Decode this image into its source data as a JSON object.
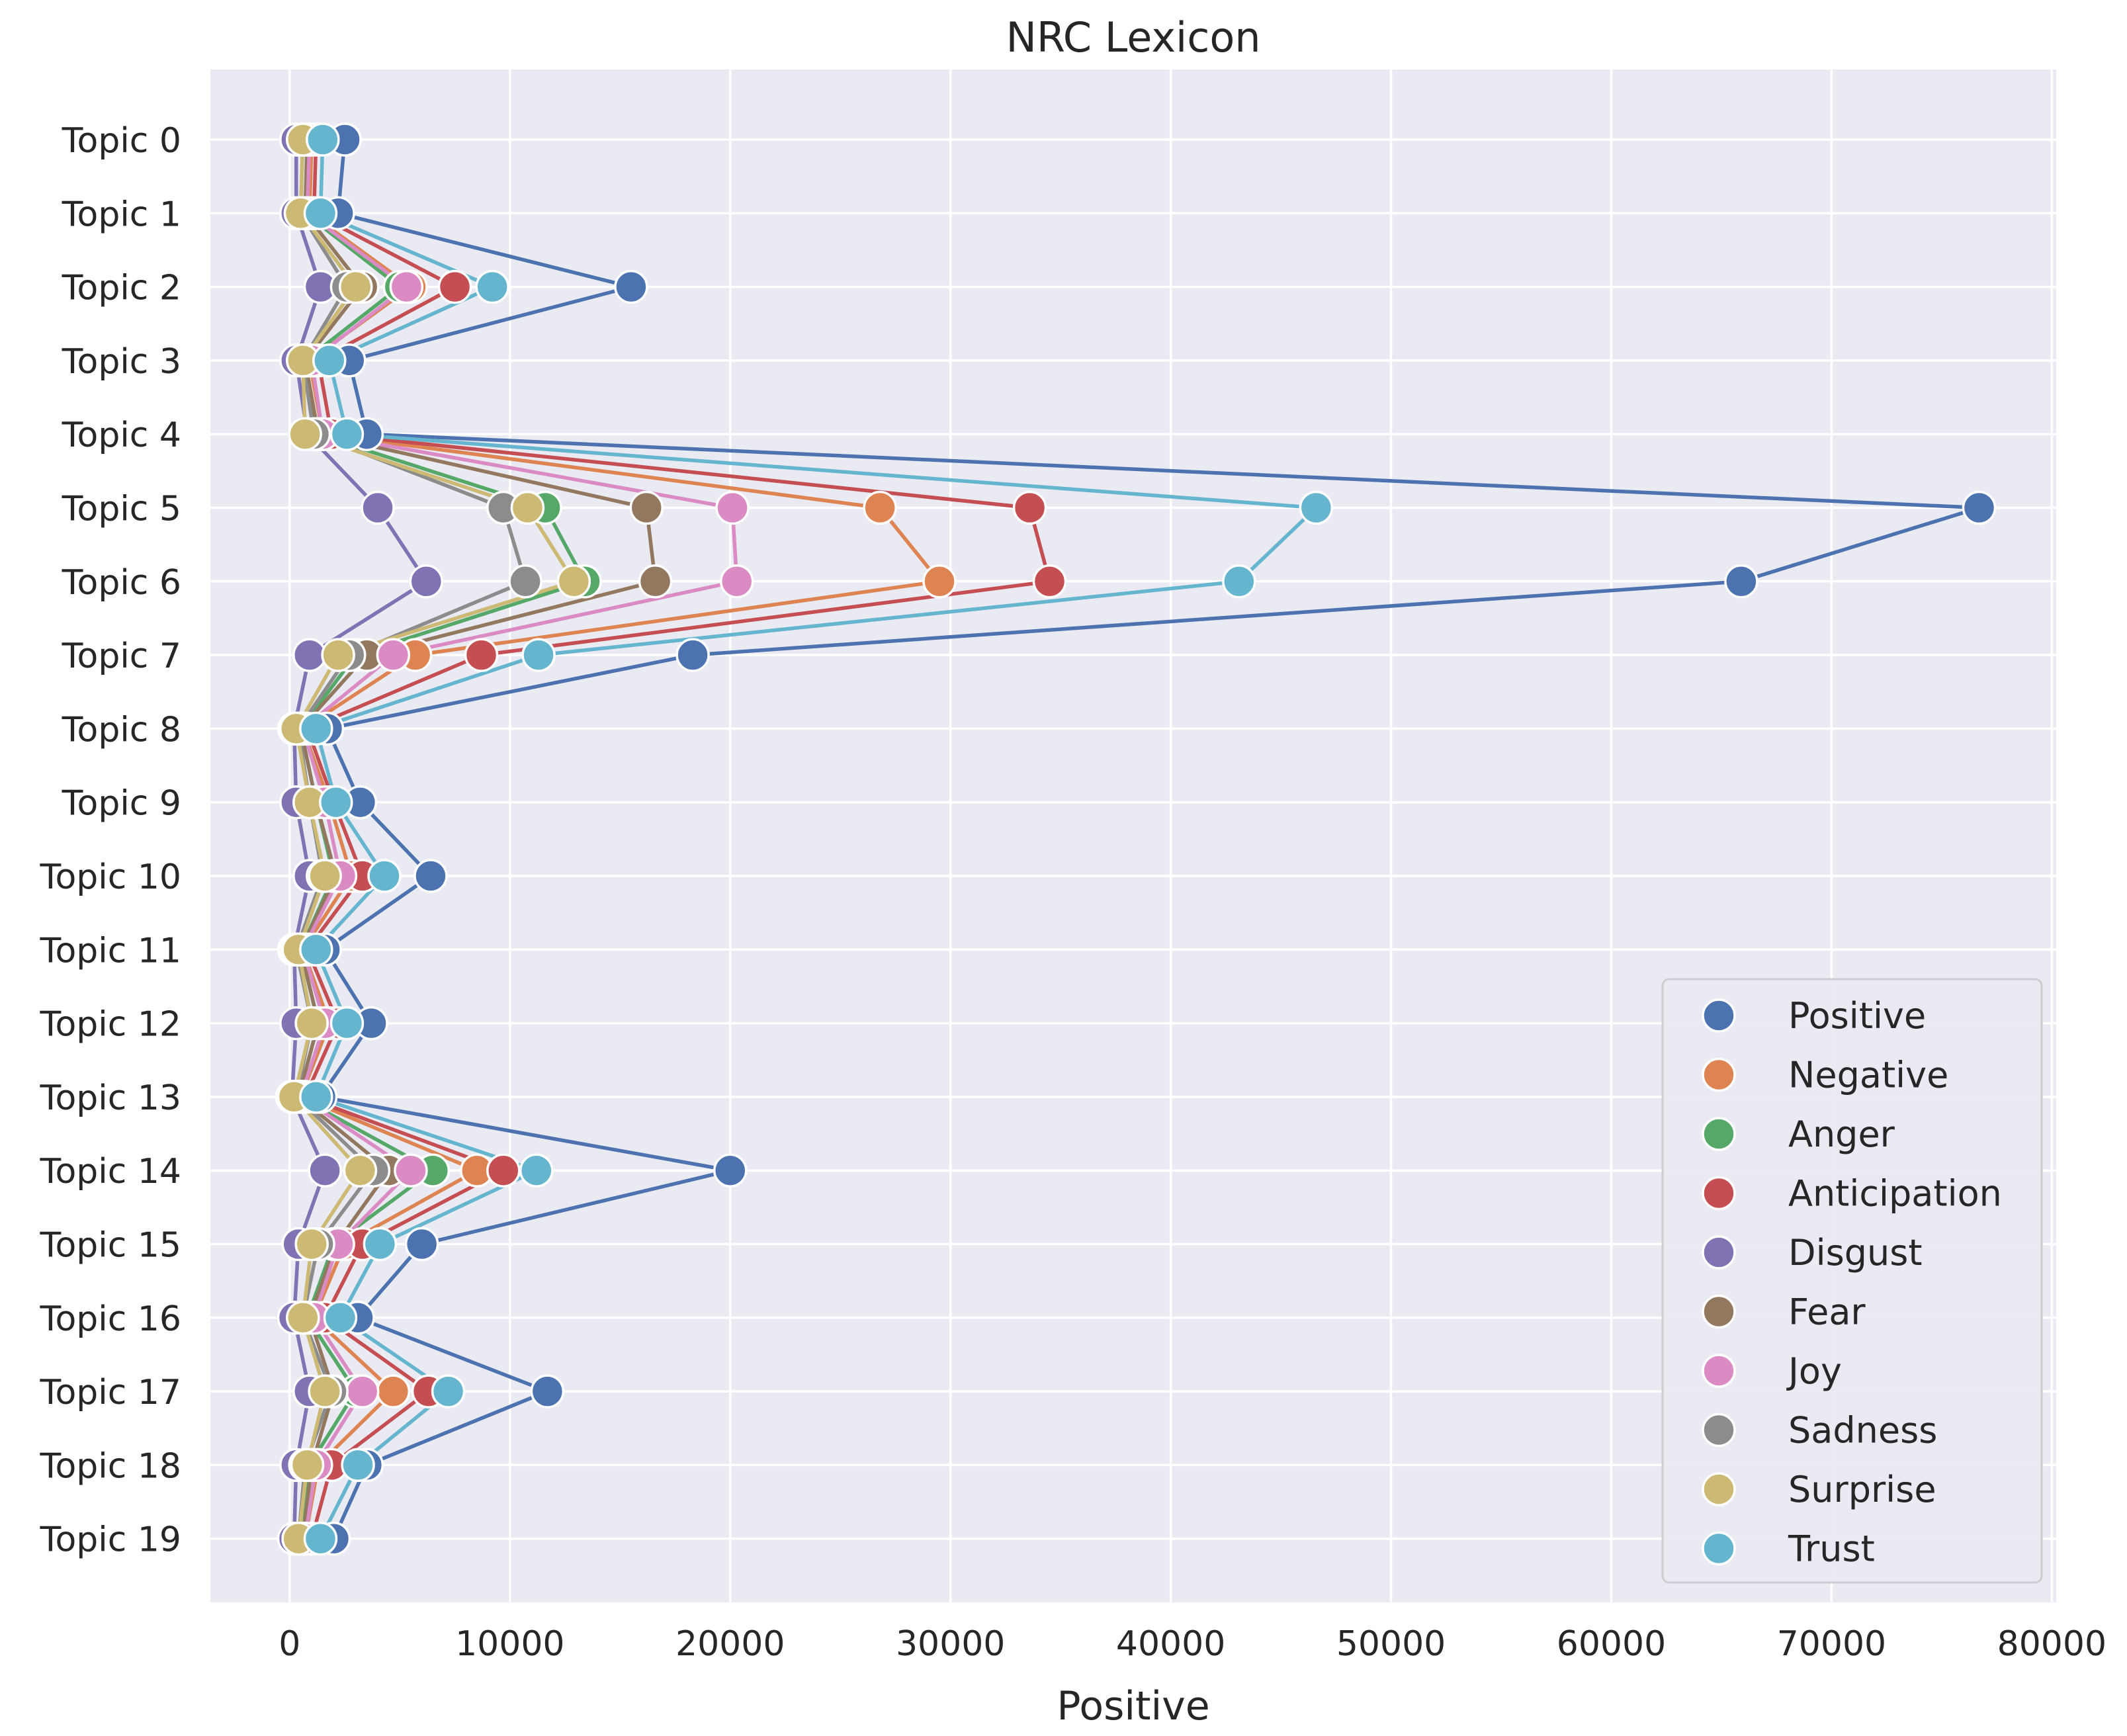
{
  "chart_data": {
    "type": "line",
    "title": "NRC Lexicon",
    "xlabel": "Positive",
    "ylabel": "",
    "xlim": [
      -3600,
      80200
    ],
    "x_ticks": [
      0,
      10000,
      20000,
      30000,
      40000,
      50000,
      60000,
      70000,
      80000
    ],
    "x_tick_labels": [
      "0",
      "10000",
      "20000",
      "30000",
      "40000",
      "50000",
      "60000",
      "70000",
      "80000"
    ],
    "categories": [
      "Topic 0",
      "Topic 1",
      "Topic 2",
      "Topic 3",
      "Topic 4",
      "Topic 5",
      "Topic 6",
      "Topic 7",
      "Topic 8",
      "Topic 9",
      "Topic 10",
      "Topic 11",
      "Topic 12",
      "Topic 13",
      "Topic 14",
      "Topic 15",
      "Topic 16",
      "Topic 17",
      "Topic 18",
      "Topic 19"
    ],
    "grid": true,
    "legend_position": "lower-right",
    "background": "#eaeaf2",
    "series": [
      {
        "name": "Positive",
        "color": "#4c72b0",
        "values": [
          2500,
          2200,
          15500,
          2700,
          3500,
          76700,
          65900,
          18300,
          1700,
          3200,
          6400,
          1600,
          3700,
          1400,
          20000,
          6000,
          3100,
          11700,
          3500,
          2000
        ]
      },
      {
        "name": "Negative",
        "color": "#dd8452",
        "values": [
          1000,
          900,
          5500,
          900,
          1500,
          26800,
          29500,
          5700,
          600,
          1800,
          2800,
          600,
          1800,
          500,
          8500,
          2500,
          1100,
          4700,
          1300,
          700
        ]
      },
      {
        "name": "Anger",
        "color": "#55a868",
        "values": [
          800,
          700,
          5000,
          700,
          1200,
          11600,
          13400,
          3000,
          500,
          1200,
          2000,
          500,
          1300,
          400,
          6500,
          2000,
          800,
          3000,
          900,
          600
        ]
      },
      {
        "name": "Anticipation",
        "color": "#c44e52",
        "values": [
          1200,
          1100,
          7500,
          1300,
          1900,
          33600,
          34500,
          8700,
          800,
          2000,
          3300,
          800,
          2200,
          700,
          9700,
          3300,
          1600,
          6300,
          1900,
          1000
        ]
      },
      {
        "name": "Disgust",
        "color": "#8172b3",
        "values": [
          300,
          300,
          1400,
          300,
          800,
          4000,
          6200,
          900,
          200,
          300,
          900,
          200,
          300,
          100,
          1600,
          400,
          200,
          900,
          300,
          200
        ]
      },
      {
        "name": "Fear",
        "color": "#937860",
        "values": [
          800,
          700,
          3300,
          700,
          1300,
          16200,
          16600,
          3500,
          500,
          1200,
          2100,
          500,
          1300,
          400,
          4500,
          2100,
          900,
          2000,
          1000,
          600
        ]
      },
      {
        "name": "Joy",
        "color": "#da8bc3",
        "values": [
          900,
          800,
          5300,
          1000,
          1500,
          20100,
          20300,
          4700,
          600,
          1600,
          2300,
          600,
          1600,
          500,
          5500,
          2200,
          1100,
          3300,
          1200,
          700
        ]
      },
      {
        "name": "Sadness",
        "color": "#8c8c8c",
        "values": [
          600,
          500,
          2600,
          600,
          1100,
          9700,
          10700,
          2700,
          400,
          900,
          1500,
          300,
          1000,
          300,
          3800,
          1300,
          600,
          1900,
          700,
          400
        ]
      },
      {
        "name": "Surprise",
        "color": "#ccb974",
        "values": [
          600,
          500,
          3000,
          600,
          700,
          10800,
          12900,
          2200,
          300,
          900,
          1600,
          400,
          1000,
          200,
          3200,
          1000,
          600,
          1600,
          800,
          400
        ]
      },
      {
        "name": "Trust",
        "color": "#64b5cd",
        "values": [
          1500,
          1400,
          9200,
          1800,
          2600,
          46600,
          43100,
          11300,
          1200,
          2100,
          4300,
          1200,
          2600,
          1200,
          11200,
          4100,
          2300,
          7200,
          3100,
          1400
        ]
      }
    ]
  }
}
